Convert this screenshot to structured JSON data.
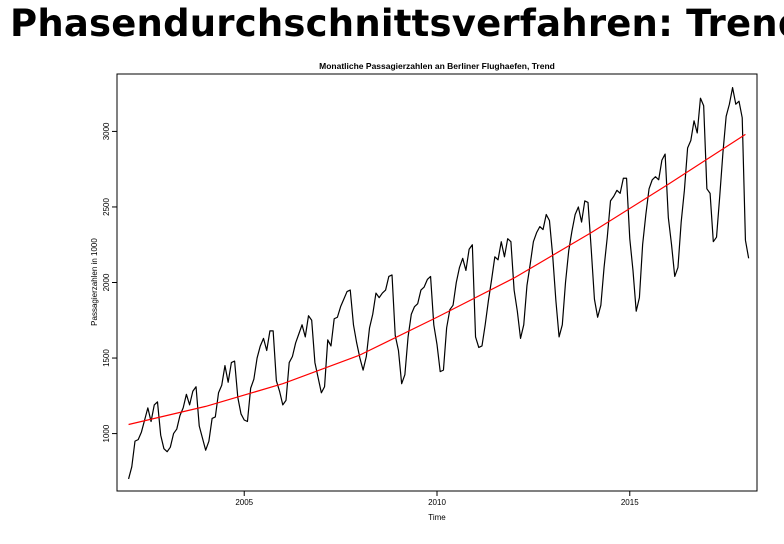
{
  "slide": {
    "title": "Phasendurchschnittsverfahren: Trend"
  },
  "chart_data": {
    "type": "line",
    "title": "Monatliche Passagierzahlen an Berliner Flughaefen, Trend",
    "xlabel": "Time",
    "ylabel": "Passagierzahlen in 1000",
    "xlim": [
      2001.7,
      2018.3
    ],
    "ylim": [
      620,
      3380
    ],
    "x_ticks": [
      2005,
      2010,
      2015
    ],
    "y_ticks": [
      1000,
      1500,
      2000,
      2500,
      3000
    ],
    "grid": false,
    "series": [
      {
        "color": "#000000",
        "start": 2002.0,
        "frequency": 12,
        "values": [
          700,
          780,
          950,
          960,
          1010,
          1090,
          1170,
          1080,
          1190,
          1210,
          990,
          900,
          880,
          910,
          1000,
          1030,
          1120,
          1170,
          1260,
          1190,
          1280,
          1310,
          1050,
          970,
          890,
          950,
          1100,
          1110,
          1270,
          1320,
          1450,
          1340,
          1470,
          1480,
          1240,
          1130,
          1090,
          1080,
          1300,
          1360,
          1500,
          1580,
          1630,
          1550,
          1680,
          1680,
          1350,
          1280,
          1190,
          1220,
          1470,
          1510,
          1600,
          1660,
          1720,
          1640,
          1780,
          1750,
          1470,
          1370,
          1270,
          1310,
          1620,
          1580,
          1760,
          1770,
          1840,
          1890,
          1940,
          1950,
          1720,
          1600,
          1500,
          1420,
          1510,
          1700,
          1790,
          1930,
          1900,
          1930,
          1950,
          2040,
          2050,
          1650,
          1550,
          1330,
          1390,
          1640,
          1790,
          1840,
          1860,
          1950,
          1970,
          2020,
          2040,
          1720,
          1590,
          1410,
          1420,
          1700,
          1820,
          1850,
          2000,
          2100,
          2160,
          2080,
          2220,
          2250,
          1640,
          1570,
          1580,
          1720,
          1880,
          2020,
          2170,
          2150,
          2270,
          2170,
          2290,
          2270,
          1950,
          1810,
          1630,
          1720,
          1980,
          2120,
          2270,
          2330,
          2370,
          2350,
          2450,
          2410,
          2180,
          1880,
          1640,
          1720,
          2000,
          2210,
          2340,
          2450,
          2500,
          2400,
          2540,
          2530,
          2220,
          1890,
          1770,
          1850,
          2100,
          2300,
          2540,
          2570,
          2610,
          2590,
          2690,
          2690,
          2290,
          2080,
          1810,
          1900,
          2250,
          2450,
          2620,
          2680,
          2700,
          2680,
          2810,
          2850,
          2430,
          2250,
          2040,
          2100,
          2400,
          2610,
          2890,
          2940,
          3070,
          2990,
          3220,
          3170,
          2620,
          2590,
          2270,
          2300,
          2570,
          2860,
          3100,
          3180,
          3290,
          3180,
          3200,
          3090,
          2280,
          2160
        ]
      },
      {
        "color": "#ff0000",
        "x": [
          2002.0,
          2004.0,
          2006.0,
          2008.0,
          2010.0,
          2012.0,
          2014.0,
          2016.0,
          2018.0
        ],
        "values": [
          1060,
          1180,
          1330,
          1520,
          1770,
          2030,
          2330,
          2650,
          2980
        ]
      }
    ]
  }
}
